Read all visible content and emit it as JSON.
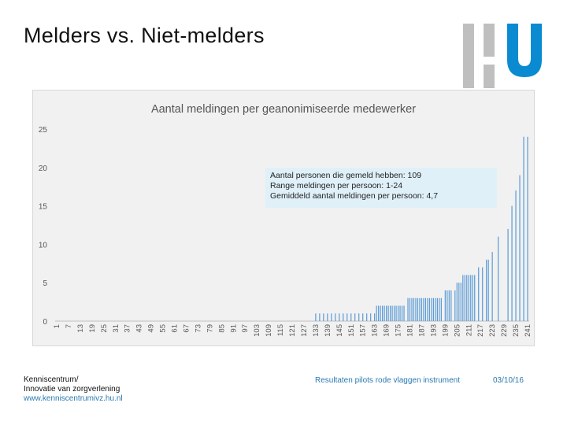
{
  "slide": {
    "title": "Melders vs. Niet-melders"
  },
  "logo": {
    "name": "HU",
    "colors": {
      "grey": "#bfbfbf",
      "blue": "#0a8bd1"
    }
  },
  "info_box": {
    "line1": "Aantal personen die gemeld hebben: 109",
    "line2": "Range meldingen per persoon: 1-24",
    "line3": "Gemiddeld aantal meldingen per persoon: 4,7"
  },
  "footer": {
    "org_line1": "Kenniscentrum/",
    "org_line2": "Innovatie van zorgverlening",
    "url": "www.kenniscentrumivz.hu.nl",
    "center_text": "Resultaten pilots rode vlaggen instrument",
    "date": "03/10/16"
  },
  "chart_data": {
    "type": "bar",
    "title": "Aantal meldingen per geanonimiseerde medewerker",
    "xlabel": "",
    "ylabel": "",
    "ylim": [
      0,
      25
    ],
    "yticks": [
      0,
      5,
      10,
      15,
      20,
      25
    ],
    "x_range": [
      1,
      241
    ],
    "xticks": [
      1,
      7,
      13,
      19,
      25,
      31,
      37,
      43,
      49,
      55,
      61,
      67,
      73,
      79,
      85,
      91,
      97,
      103,
      109,
      115,
      121,
      127,
      133,
      139,
      145,
      151,
      157,
      163,
      169,
      175,
      181,
      187,
      193,
      199,
      205,
      211,
      217,
      223,
      229,
      235,
      241
    ],
    "grid": false,
    "bar_color": "#5b9bd5",
    "x": [
      133,
      135,
      137,
      139,
      141,
      143,
      145,
      147,
      149,
      151,
      153,
      155,
      157,
      159,
      161,
      163,
      164,
      165,
      166,
      167,
      168,
      169,
      170,
      171,
      172,
      173,
      174,
      175,
      176,
      177,
      178,
      180,
      181,
      182,
      183,
      184,
      185,
      186,
      187,
      188,
      189,
      190,
      191,
      192,
      193,
      194,
      195,
      196,
      197,
      199,
      200,
      201,
      202,
      204,
      205,
      206,
      207,
      208,
      209,
      210,
      211,
      212,
      213,
      214,
      216,
      218,
      220,
      221,
      223,
      226,
      231,
      233,
      235,
      237,
      239,
      241
    ],
    "values": [
      1,
      1,
      1,
      1,
      1,
      1,
      1,
      1,
      1,
      1,
      1,
      1,
      1,
      1,
      1,
      1,
      2,
      2,
      2,
      2,
      2,
      2,
      2,
      2,
      2,
      2,
      2,
      2,
      2,
      2,
      2,
      3,
      3,
      3,
      3,
      3,
      3,
      3,
      3,
      3,
      3,
      3,
      3,
      3,
      3,
      3,
      3,
      3,
      3,
      4,
      4,
      4,
      4,
      4,
      5,
      5,
      5,
      6,
      6,
      6,
      6,
      6,
      6,
      6,
      7,
      7,
      8,
      8,
      9,
      11,
      12,
      15,
      17,
      19,
      24,
      24
    ]
  }
}
